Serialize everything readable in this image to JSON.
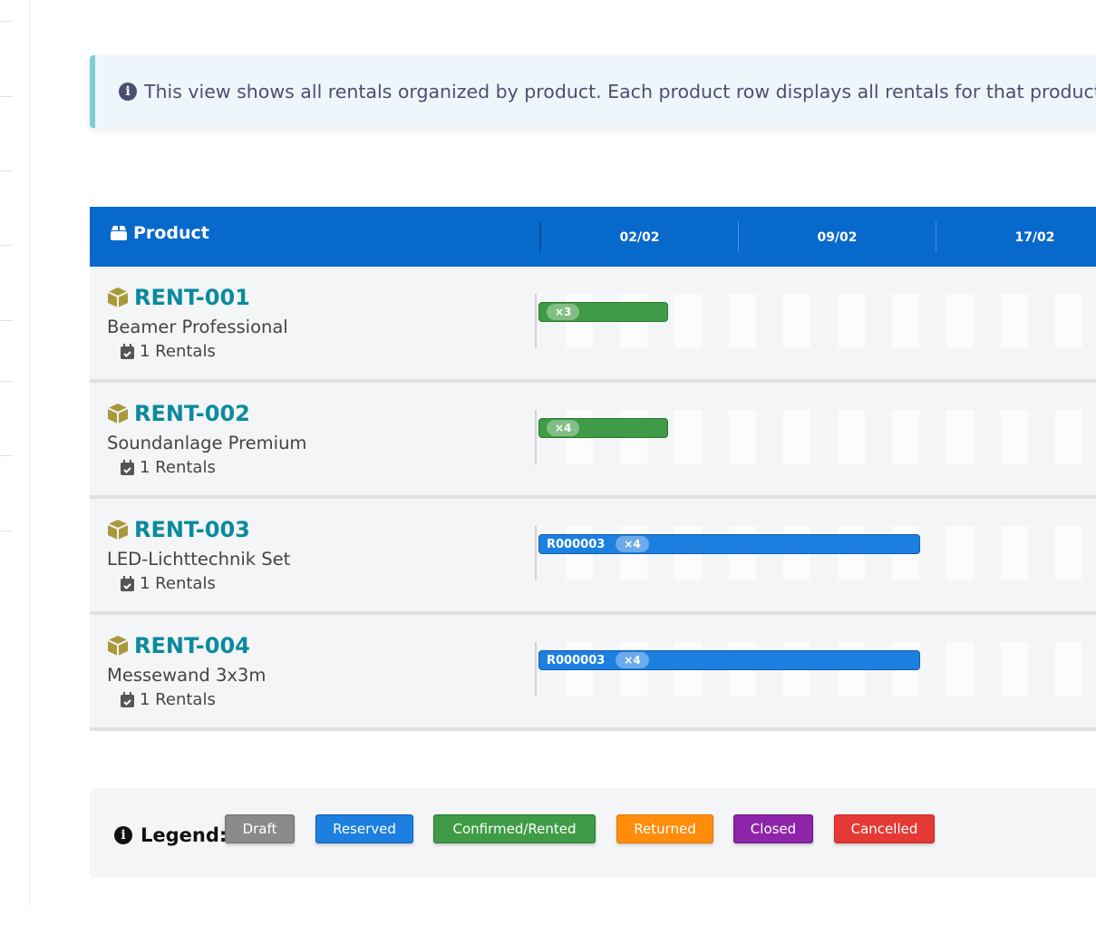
{
  "info": {
    "text": "This view shows all rentals organized by product. Each product row displays all rentals for that product"
  },
  "gantt": {
    "header": {
      "product_label": "Product",
      "dates": [
        "02/02",
        "09/02",
        "17/02"
      ]
    },
    "rows": [
      {
        "code": "RENT-001",
        "name": "Beamer Professional",
        "rentals": "1 Rentals",
        "bar": {
          "status": "Confirmed/Rented",
          "color": "#3f9b45",
          "ref": "",
          "qty": "×3"
        }
      },
      {
        "code": "RENT-002",
        "name": "Soundanlage Premium",
        "rentals": "1 Rentals",
        "bar": {
          "status": "Confirmed/Rented",
          "color": "#3f9b45",
          "ref": "",
          "qty": "×4"
        }
      },
      {
        "code": "RENT-003",
        "name": "LED-Lichttechnik Set",
        "rentals": "1 Rentals",
        "bar": {
          "status": "Reserved",
          "color": "#1d7fe0",
          "ref": "R000003",
          "qty": "×4"
        }
      },
      {
        "code": "RENT-004",
        "name": "Messewand 3x3m",
        "rentals": "1 Rentals",
        "bar": {
          "status": "Reserved",
          "color": "#1d7fe0",
          "ref": "R000003",
          "qty": "×4"
        }
      }
    ]
  },
  "legend": {
    "title": "Legend:",
    "items": [
      {
        "label": "Draft",
        "color": "#8a8a8a"
      },
      {
        "label": "Reserved",
        "color": "#1d7fe0"
      },
      {
        "label": "Confirmed/Rented",
        "color": "#3f9b45"
      },
      {
        "label": "Returned",
        "color": "#ff8c0a"
      },
      {
        "label": "Closed",
        "color": "#8e24aa"
      },
      {
        "label": "Cancelled",
        "color": "#e53935"
      }
    ]
  }
}
